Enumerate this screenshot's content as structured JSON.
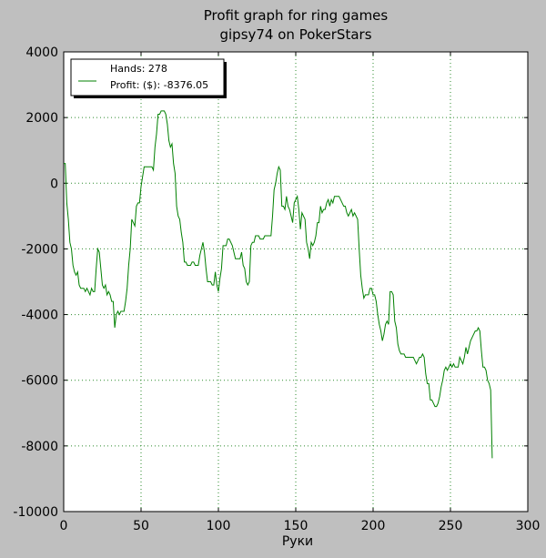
{
  "chart_data": {
    "type": "line",
    "title": "Profit graph for ring games",
    "subtitle": "gipsy74 on PokerStars",
    "xlabel": "Руки",
    "ylabel": "",
    "xlim": [
      0,
      300
    ],
    "ylim": [
      -10000,
      4000
    ],
    "xticks": [
      0,
      50,
      100,
      150,
      200,
      250,
      300
    ],
    "yticks": [
      4000,
      2000,
      0,
      -2000,
      -4000,
      -6000,
      -8000,
      -10000
    ],
    "grid": true,
    "legend_position": "top-left",
    "legend": [
      "Hands: 278",
      "Profit: ($): -8376.05"
    ],
    "colors": {
      "line": "#008000",
      "grid": "#2e8b2e",
      "background": "#ffffff",
      "figure": "#bfbfbf"
    },
    "series": [
      {
        "points": [
          [
            0,
            600
          ],
          [
            1,
            600
          ],
          [
            2,
            -600
          ],
          [
            3,
            -1100
          ],
          [
            4,
            -1800
          ],
          [
            5,
            -2000
          ],
          [
            6,
            -2500
          ],
          [
            7,
            -2700
          ],
          [
            8,
            -2800
          ],
          [
            9,
            -2700
          ],
          [
            10,
            -3100
          ],
          [
            11,
            -3200
          ],
          [
            13,
            -3200
          ],
          [
            14,
            -3300
          ],
          [
            15,
            -3200
          ],
          [
            16,
            -3300
          ],
          [
            17,
            -3400
          ],
          [
            18,
            -3200
          ],
          [
            19,
            -3300
          ],
          [
            20,
            -3300
          ],
          [
            21,
            -2600
          ],
          [
            22,
            -2000
          ],
          [
            23,
            -2100
          ],
          [
            24,
            -2600
          ],
          [
            25,
            -3100
          ],
          [
            26,
            -3200
          ],
          [
            27,
            -3100
          ],
          [
            28,
            -3400
          ],
          [
            29,
            -3300
          ],
          [
            30,
            -3400
          ],
          [
            31,
            -3600
          ],
          [
            32,
            -3600
          ],
          [
            33,
            -4400
          ],
          [
            34,
            -4000
          ],
          [
            35,
            -3900
          ],
          [
            36,
            -4000
          ],
          [
            37,
            -3900
          ],
          [
            38,
            -3900
          ],
          [
            39,
            -3900
          ],
          [
            40,
            -3600
          ],
          [
            41,
            -3200
          ],
          [
            42,
            -2500
          ],
          [
            43,
            -2000
          ],
          [
            44,
            -1100
          ],
          [
            45,
            -1200
          ],
          [
            46,
            -1300
          ],
          [
            47,
            -700
          ],
          [
            48,
            -600
          ],
          [
            49,
            -600
          ],
          [
            50,
            -100
          ],
          [
            51,
            200
          ],
          [
            52,
            500
          ],
          [
            53,
            500
          ],
          [
            54,
            500
          ],
          [
            55,
            500
          ],
          [
            56,
            500
          ],
          [
            57,
            500
          ],
          [
            58,
            400
          ],
          [
            59,
            1100
          ],
          [
            60,
            1500
          ],
          [
            61,
            2100
          ],
          [
            62,
            2100
          ],
          [
            63,
            2200
          ],
          [
            64,
            2200
          ],
          [
            65,
            2200
          ],
          [
            66,
            2100
          ],
          [
            67,
            1800
          ],
          [
            68,
            1300
          ],
          [
            69,
            1100
          ],
          [
            70,
            1200
          ],
          [
            71,
            600
          ],
          [
            72,
            300
          ],
          [
            73,
            -700
          ],
          [
            74,
            -1000
          ],
          [
            75,
            -1100
          ],
          [
            76,
            -1500
          ],
          [
            77,
            -1800
          ],
          [
            78,
            -2400
          ],
          [
            79,
            -2400
          ],
          [
            80,
            -2500
          ],
          [
            81,
            -2500
          ],
          [
            82,
            -2500
          ],
          [
            83,
            -2400
          ],
          [
            84,
            -2400
          ],
          [
            85,
            -2500
          ],
          [
            86,
            -2500
          ],
          [
            87,
            -2500
          ],
          [
            88,
            -2200
          ],
          [
            89,
            -2000
          ],
          [
            90,
            -1800
          ],
          [
            91,
            -2100
          ],
          [
            92,
            -2600
          ],
          [
            93,
            -3000
          ],
          [
            94,
            -3000
          ],
          [
            95,
            -3000
          ],
          [
            96,
            -3100
          ],
          [
            97,
            -3100
          ],
          [
            98,
            -2700
          ],
          [
            99,
            -3100
          ],
          [
            100,
            -3300
          ],
          [
            101,
            -2900
          ],
          [
            102,
            -2600
          ],
          [
            103,
            -1900
          ],
          [
            104,
            -1900
          ],
          [
            105,
            -1900
          ],
          [
            106,
            -1700
          ],
          [
            107,
            -1700
          ],
          [
            108,
            -1800
          ],
          [
            109,
            -1900
          ],
          [
            110,
            -2100
          ],
          [
            111,
            -2300
          ],
          [
            112,
            -2300
          ],
          [
            113,
            -2300
          ],
          [
            114,
            -2300
          ],
          [
            115,
            -2100
          ],
          [
            116,
            -2500
          ],
          [
            117,
            -2600
          ],
          [
            118,
            -3000
          ],
          [
            119,
            -3100
          ],
          [
            120,
            -3000
          ],
          [
            121,
            -1900
          ],
          [
            122,
            -1800
          ],
          [
            123,
            -1800
          ],
          [
            124,
            -1600
          ],
          [
            125,
            -1600
          ],
          [
            126,
            -1600
          ],
          [
            127,
            -1700
          ],
          [
            128,
            -1700
          ],
          [
            129,
            -1700
          ],
          [
            130,
            -1600
          ],
          [
            131,
            -1600
          ],
          [
            132,
            -1600
          ],
          [
            133,
            -1600
          ],
          [
            134,
            -1600
          ],
          [
            135,
            -1000
          ],
          [
            136,
            -200
          ],
          [
            137,
            0
          ],
          [
            138,
            300
          ],
          [
            139,
            500
          ],
          [
            140,
            400
          ],
          [
            141,
            -700
          ],
          [
            142,
            -700
          ],
          [
            143,
            -800
          ],
          [
            144,
            -400
          ],
          [
            145,
            -700
          ],
          [
            146,
            -800
          ],
          [
            147,
            -1000
          ],
          [
            148,
            -1200
          ],
          [
            149,
            -600
          ],
          [
            150,
            -500
          ],
          [
            151,
            -400
          ],
          [
            152,
            -800
          ],
          [
            153,
            -1400
          ],
          [
            154,
            -900
          ],
          [
            155,
            -1000
          ],
          [
            156,
            -1100
          ],
          [
            157,
            -1800
          ],
          [
            158,
            -2000
          ],
          [
            159,
            -2300
          ],
          [
            160,
            -1800
          ],
          [
            161,
            -1900
          ],
          [
            162,
            -1800
          ],
          [
            163,
            -1600
          ],
          [
            164,
            -1200
          ],
          [
            165,
            -1200
          ],
          [
            166,
            -700
          ],
          [
            167,
            -900
          ],
          [
            168,
            -800
          ],
          [
            169,
            -800
          ],
          [
            170,
            -600
          ],
          [
            171,
            -500
          ],
          [
            172,
            -700
          ],
          [
            173,
            -500
          ],
          [
            174,
            -600
          ],
          [
            175,
            -400
          ],
          [
            176,
            -400
          ],
          [
            177,
            -400
          ],
          [
            178,
            -400
          ],
          [
            179,
            -500
          ],
          [
            180,
            -600
          ],
          [
            181,
            -700
          ],
          [
            182,
            -700
          ],
          [
            183,
            -900
          ],
          [
            184,
            -1000
          ],
          [
            185,
            -900
          ],
          [
            186,
            -800
          ],
          [
            187,
            -1000
          ],
          [
            188,
            -900
          ],
          [
            189,
            -1000
          ],
          [
            190,
            -1100
          ],
          [
            191,
            -2000
          ],
          [
            192,
            -2800
          ],
          [
            193,
            -3200
          ],
          [
            194,
            -3500
          ],
          [
            195,
            -3400
          ],
          [
            196,
            -3400
          ],
          [
            197,
            -3400
          ],
          [
            198,
            -3200
          ],
          [
            199,
            -3200
          ],
          [
            200,
            -3400
          ],
          [
            201,
            -3400
          ],
          [
            202,
            -3600
          ],
          [
            203,
            -4000
          ],
          [
            204,
            -4300
          ],
          [
            205,
            -4500
          ],
          [
            206,
            -4800
          ],
          [
            207,
            -4600
          ],
          [
            208,
            -4300
          ],
          [
            209,
            -4200
          ],
          [
            210,
            -4300
          ],
          [
            211,
            -3300
          ],
          [
            212,
            -3300
          ],
          [
            213,
            -3400
          ],
          [
            214,
            -4200
          ],
          [
            215,
            -4400
          ],
          [
            216,
            -4900
          ],
          [
            217,
            -5100
          ],
          [
            218,
            -5200
          ],
          [
            219,
            -5200
          ],
          [
            220,
            -5200
          ],
          [
            221,
            -5300
          ],
          [
            222,
            -5300
          ],
          [
            223,
            -5300
          ],
          [
            224,
            -5300
          ],
          [
            225,
            -5300
          ],
          [
            226,
            -5300
          ],
          [
            227,
            -5400
          ],
          [
            228,
            -5500
          ],
          [
            229,
            -5400
          ],
          [
            230,
            -5300
          ],
          [
            231,
            -5300
          ],
          [
            232,
            -5200
          ],
          [
            233,
            -5300
          ],
          [
            234,
            -5800
          ],
          [
            235,
            -6100
          ],
          [
            236,
            -6100
          ],
          [
            237,
            -6600
          ],
          [
            238,
            -6600
          ],
          [
            239,
            -6700
          ],
          [
            240,
            -6800
          ],
          [
            241,
            -6800
          ],
          [
            242,
            -6700
          ],
          [
            243,
            -6500
          ],
          [
            244,
            -6200
          ],
          [
            245,
            -6000
          ],
          [
            246,
            -5700
          ],
          [
            247,
            -5600
          ],
          [
            248,
            -5700
          ],
          [
            249,
            -5600
          ],
          [
            250,
            -5500
          ],
          [
            251,
            -5600
          ],
          [
            252,
            -5500
          ],
          [
            253,
            -5600
          ],
          [
            254,
            -5600
          ],
          [
            255,
            -5600
          ],
          [
            256,
            -5300
          ],
          [
            257,
            -5400
          ],
          [
            258,
            -5500
          ],
          [
            259,
            -5300
          ],
          [
            260,
            -5000
          ],
          [
            261,
            -5200
          ],
          [
            262,
            -5000
          ],
          [
            263,
            -4800
          ],
          [
            264,
            -4700
          ],
          [
            265,
            -4600
          ],
          [
            266,
            -4500
          ],
          [
            267,
            -4500
          ],
          [
            268,
            -4400
          ],
          [
            269,
            -4500
          ],
          [
            270,
            -5100
          ],
          [
            271,
            -5600
          ],
          [
            272,
            -5600
          ],
          [
            273,
            -5700
          ],
          [
            274,
            -6000
          ],
          [
            275,
            -6100
          ],
          [
            276,
            -6300
          ],
          [
            277,
            -8376
          ]
        ]
      }
    ]
  }
}
